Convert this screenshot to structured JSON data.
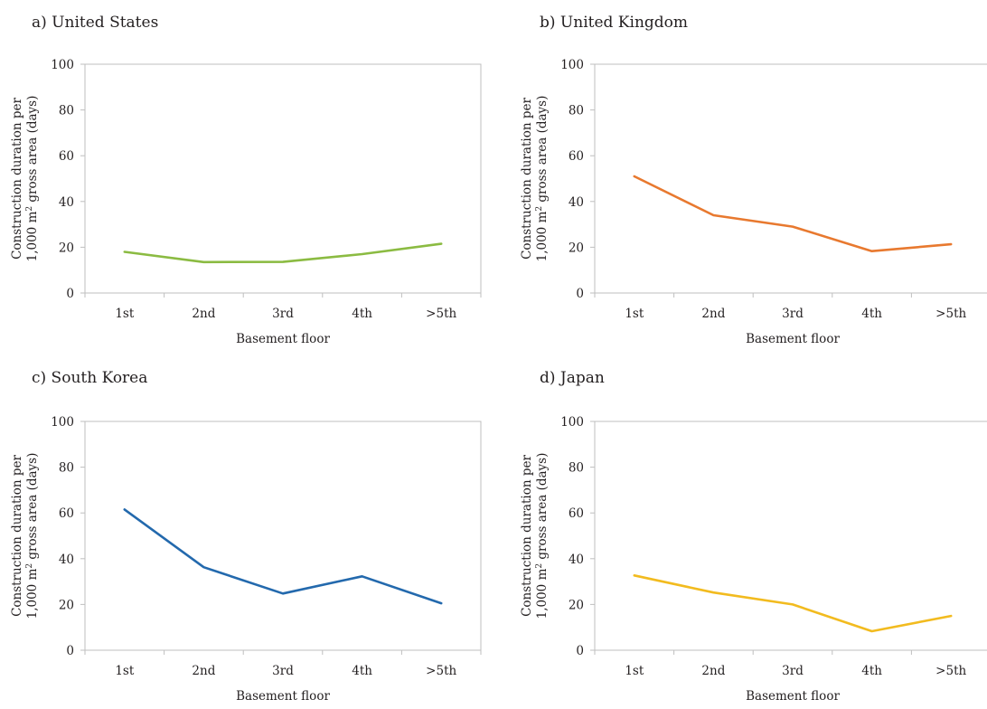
{
  "shared": {
    "xlabel": "Basement floor",
    "ylabel_line1": "Construction duration per",
    "ylabel_line2_prefix": "1,000 m",
    "ylabel_line2_sup": "2",
    "ylabel_line2_suffix": " gross area (days)"
  },
  "chart_data": [
    {
      "type": "line",
      "title": "a) United States",
      "categories": [
        "1st",
        "2nd",
        "3rd",
        "4th",
        ">5th"
      ],
      "series": [
        {
          "values": [
            18,
            13.5,
            13.6,
            17,
            21.5
          ],
          "color": "#8bbb42"
        }
      ],
      "xlabel": "Basement floor",
      "ylabel": "Construction duration per 1,000 m2 gross area (days)",
      "ylim": [
        0,
        100
      ],
      "yticks": [
        "0",
        "20",
        "40",
        "60",
        "80",
        "100"
      ]
    },
    {
      "type": "line",
      "title": "b) United Kingdom",
      "categories": [
        "1st",
        "2nd",
        "3rd",
        "4th",
        ">5th"
      ],
      "series": [
        {
          "values": [
            51,
            34,
            29,
            18.3,
            21.3
          ],
          "color": "#e8792f"
        }
      ],
      "xlabel": "Basement floor",
      "ylabel": "Construction duration per 1,000 m2 gross area (days)",
      "ylim": [
        0,
        100
      ],
      "yticks": [
        "0",
        "20",
        "40",
        "60",
        "80",
        "100"
      ]
    },
    {
      "type": "line",
      "title": "c) South Korea",
      "categories": [
        "1st",
        "2nd",
        "3rd",
        "4th",
        ">5th"
      ],
      "series": [
        {
          "values": [
            61.5,
            36.3,
            24.8,
            32.3,
            20.5
          ],
          "color": "#2369ad"
        }
      ],
      "xlabel": "Basement floor",
      "ylabel": "Construction duration per 1,000 m2 gross area (days)",
      "ylim": [
        0,
        100
      ],
      "yticks": [
        "0",
        "20",
        "40",
        "60",
        "80",
        "100"
      ]
    },
    {
      "type": "line",
      "title": "d) Japan",
      "categories": [
        "1st",
        "2nd",
        "3rd",
        "4th",
        ">5th"
      ],
      "series": [
        {
          "values": [
            32.7,
            25.2,
            20,
            8.3,
            15
          ],
          "color": "#f2bb1f"
        }
      ],
      "xlabel": "Basement floor",
      "ylabel": "Construction duration per 1,000 m2 gross area (days)",
      "ylim": [
        0,
        100
      ],
      "yticks": [
        "0",
        "20",
        "40",
        "60",
        "80",
        "100"
      ]
    }
  ]
}
